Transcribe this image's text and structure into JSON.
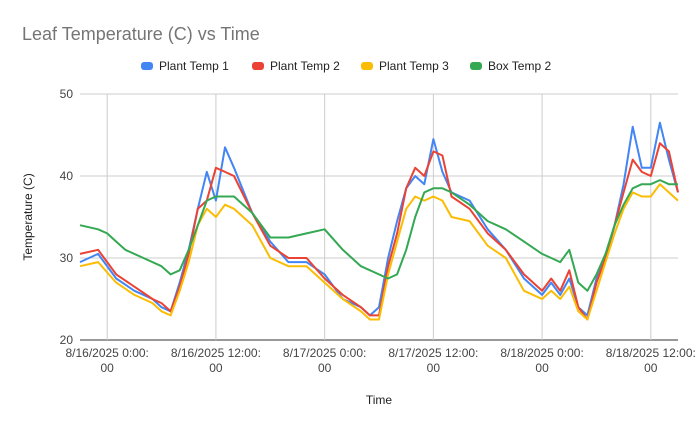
{
  "chart_data": {
    "type": "line",
    "title": "Leaf Temperature (C) vs Time",
    "xlabel": "Time",
    "ylabel": "Temperature (C)",
    "ylim": [
      20,
      50
    ],
    "yticks": [
      20,
      30,
      40,
      50
    ],
    "xlim": [
      "2025-08-15 21:00",
      "2025-08-18 15:00"
    ],
    "xticks": [
      {
        "x": "2025-08-16 00:00",
        "label": [
          "8/16/2025 0:00:",
          "00"
        ]
      },
      {
        "x": "2025-08-16 12:00",
        "label": [
          "8/16/2025 12:00:",
          "00"
        ]
      },
      {
        "x": "2025-08-17 00:00",
        "label": [
          "8/17/2025 0:00:",
          "00"
        ]
      },
      {
        "x": "2025-08-17 12:00",
        "label": [
          "8/17/2025 12:00:",
          "00"
        ]
      },
      {
        "x": "2025-08-18 00:00",
        "label": [
          "8/18/2025 0:00:",
          "00"
        ]
      },
      {
        "x": "2025-08-18 12:00",
        "label": [
          "8/18/2025 12:00:",
          "00"
        ]
      }
    ],
    "grid": true,
    "legend_position": "top",
    "series": [
      {
        "name": "Plant Temp 1",
        "color": "#4285f4",
        "x": [
          "2025-08-15 21:00",
          "2025-08-15 23:00",
          "2025-08-16 01:00",
          "2025-08-16 03:00",
          "2025-08-16 05:00",
          "2025-08-16 06:00",
          "2025-08-16 07:00",
          "2025-08-16 08:00",
          "2025-08-16 09:00",
          "2025-08-16 10:00",
          "2025-08-16 11:00",
          "2025-08-16 12:00",
          "2025-08-16 13:00",
          "2025-08-16 14:00",
          "2025-08-16 16:00",
          "2025-08-16 18:00",
          "2025-08-16 20:00",
          "2025-08-16 22:00",
          "2025-08-17 00:00",
          "2025-08-17 02:00",
          "2025-08-17 04:00",
          "2025-08-17 05:00",
          "2025-08-17 06:00",
          "2025-08-17 07:00",
          "2025-08-17 08:00",
          "2025-08-17 09:00",
          "2025-08-17 10:00",
          "2025-08-17 11:00",
          "2025-08-17 12:00",
          "2025-08-17 13:00",
          "2025-08-17 14:00",
          "2025-08-17 16:00",
          "2025-08-17 18:00",
          "2025-08-17 20:00",
          "2025-08-17 22:00",
          "2025-08-18 00:00",
          "2025-08-18 01:00",
          "2025-08-18 02:00",
          "2025-08-18 03:00",
          "2025-08-18 04:00",
          "2025-08-18 05:00",
          "2025-08-18 06:00",
          "2025-08-18 07:00",
          "2025-08-18 08:00",
          "2025-08-18 09:00",
          "2025-08-18 10:00",
          "2025-08-18 11:00",
          "2025-08-18 12:00",
          "2025-08-18 13:00",
          "2025-08-18 14:00",
          "2025-08-18 15:00"
        ],
        "y": [
          29.5,
          30.5,
          27.5,
          26,
          25,
          24,
          23.5,
          27,
          31,
          36,
          40.5,
          37,
          43.5,
          41,
          35.5,
          32,
          29.5,
          29.5,
          28,
          25,
          24,
          23,
          24,
          30,
          34.5,
          38.5,
          40,
          39,
          44.5,
          40.5,
          38,
          37,
          33.5,
          31,
          27.5,
          25.5,
          27,
          25.5,
          27.5,
          24,
          23,
          27.5,
          30,
          34,
          39,
          46,
          41,
          41,
          46.5,
          42,
          38
        ]
      },
      {
        "name": "Plant Temp 2",
        "color": "#ea4335",
        "x": [
          "2025-08-15 21:00",
          "2025-08-15 23:00",
          "2025-08-16 01:00",
          "2025-08-16 03:00",
          "2025-08-16 05:00",
          "2025-08-16 06:00",
          "2025-08-16 07:00",
          "2025-08-16 08:00",
          "2025-08-16 09:00",
          "2025-08-16 10:00",
          "2025-08-16 11:00",
          "2025-08-16 12:00",
          "2025-08-16 13:00",
          "2025-08-16 14:00",
          "2025-08-16 16:00",
          "2025-08-16 18:00",
          "2025-08-16 20:00",
          "2025-08-16 22:00",
          "2025-08-17 00:00",
          "2025-08-17 02:00",
          "2025-08-17 04:00",
          "2025-08-17 05:00",
          "2025-08-17 06:00",
          "2025-08-17 07:00",
          "2025-08-17 08:00",
          "2025-08-17 09:00",
          "2025-08-17 10:00",
          "2025-08-17 11:00",
          "2025-08-17 12:00",
          "2025-08-17 13:00",
          "2025-08-17 14:00",
          "2025-08-17 16:00",
          "2025-08-17 18:00",
          "2025-08-17 20:00",
          "2025-08-17 22:00",
          "2025-08-18 00:00",
          "2025-08-18 01:00",
          "2025-08-18 02:00",
          "2025-08-18 03:00",
          "2025-08-18 04:00",
          "2025-08-18 05:00",
          "2025-08-18 06:00",
          "2025-08-18 07:00",
          "2025-08-18 08:00",
          "2025-08-18 09:00",
          "2025-08-18 10:00",
          "2025-08-18 11:00",
          "2025-08-18 12:00",
          "2025-08-18 13:00",
          "2025-08-18 14:00",
          "2025-08-18 15:00"
        ],
        "y": [
          30.5,
          31,
          28,
          26.5,
          25,
          24.5,
          23.5,
          26.5,
          30.5,
          36,
          37,
          41,
          40.5,
          40,
          35.5,
          31.5,
          30,
          30,
          27.5,
          25.5,
          24,
          23,
          23,
          29,
          33,
          38.5,
          41,
          40,
          43,
          42.5,
          37.5,
          36,
          33,
          31,
          28,
          26,
          27.5,
          26,
          28.5,
          24,
          22.5,
          27,
          30,
          34,
          38,
          42,
          40.5,
          40,
          44,
          43,
          38
        ]
      },
      {
        "name": "Plant Temp 3",
        "color": "#fbbc04",
        "x": [
          "2025-08-15 21:00",
          "2025-08-15 23:00",
          "2025-08-16 01:00",
          "2025-08-16 03:00",
          "2025-08-16 05:00",
          "2025-08-16 06:00",
          "2025-08-16 07:00",
          "2025-08-16 08:00",
          "2025-08-16 09:00",
          "2025-08-16 10:00",
          "2025-08-16 11:00",
          "2025-08-16 12:00",
          "2025-08-16 13:00",
          "2025-08-16 14:00",
          "2025-08-16 16:00",
          "2025-08-16 18:00",
          "2025-08-16 20:00",
          "2025-08-16 22:00",
          "2025-08-17 00:00",
          "2025-08-17 02:00",
          "2025-08-17 04:00",
          "2025-08-17 05:00",
          "2025-08-17 06:00",
          "2025-08-17 07:00",
          "2025-08-17 08:00",
          "2025-08-17 09:00",
          "2025-08-17 10:00",
          "2025-08-17 11:00",
          "2025-08-17 12:00",
          "2025-08-17 13:00",
          "2025-08-17 14:00",
          "2025-08-17 16:00",
          "2025-08-17 18:00",
          "2025-08-17 20:00",
          "2025-08-17 22:00",
          "2025-08-18 00:00",
          "2025-08-18 01:00",
          "2025-08-18 02:00",
          "2025-08-18 03:00",
          "2025-08-18 04:00",
          "2025-08-18 05:00",
          "2025-08-18 06:00",
          "2025-08-18 07:00",
          "2025-08-18 08:00",
          "2025-08-18 09:00",
          "2025-08-18 10:00",
          "2025-08-18 11:00",
          "2025-08-18 12:00",
          "2025-08-18 13:00",
          "2025-08-18 14:00",
          "2025-08-18 15:00"
        ],
        "y": [
          29,
          29.5,
          27,
          25.5,
          24.5,
          23.5,
          23,
          26,
          29.5,
          34,
          36,
          35,
          36.5,
          36,
          34,
          30,
          29,
          29,
          27,
          25,
          23.5,
          22.5,
          22.5,
          28,
          32,
          36,
          37.5,
          37,
          37.5,
          37,
          35,
          34.5,
          31.5,
          30,
          26,
          25,
          26,
          25,
          26.5,
          23.5,
          22.5,
          26,
          29.5,
          33,
          36,
          38,
          37.5,
          37.5,
          39,
          38,
          37
        ]
      },
      {
        "name": "Box Temp 2",
        "color": "#34a853",
        "x": [
          "2025-08-15 21:00",
          "2025-08-15 23:00",
          "2025-08-16 00:00",
          "2025-08-16 01:00",
          "2025-08-16 02:00",
          "2025-08-16 04:00",
          "2025-08-16 06:00",
          "2025-08-16 07:00",
          "2025-08-16 08:00",
          "2025-08-16 09:00",
          "2025-08-16 10:00",
          "2025-08-16 11:00",
          "2025-08-16 12:00",
          "2025-08-16 13:00",
          "2025-08-16 14:00",
          "2025-08-16 16:00",
          "2025-08-16 18:00",
          "2025-08-16 20:00",
          "2025-08-16 22:00",
          "2025-08-17 00:00",
          "2025-08-17 02:00",
          "2025-08-17 04:00",
          "2025-08-17 06:00",
          "2025-08-17 07:00",
          "2025-08-17 08:00",
          "2025-08-17 09:00",
          "2025-08-17 10:00",
          "2025-08-17 11:00",
          "2025-08-17 12:00",
          "2025-08-17 13:00",
          "2025-08-17 14:00",
          "2025-08-17 16:00",
          "2025-08-17 18:00",
          "2025-08-17 20:00",
          "2025-08-17 22:00",
          "2025-08-18 00:00",
          "2025-08-18 01:00",
          "2025-08-18 02:00",
          "2025-08-18 03:00",
          "2025-08-18 04:00",
          "2025-08-18 05:00",
          "2025-08-18 06:00",
          "2025-08-18 07:00",
          "2025-08-18 08:00",
          "2025-08-18 09:00",
          "2025-08-18 10:00",
          "2025-08-18 11:00",
          "2025-08-18 12:00",
          "2025-08-18 13:00",
          "2025-08-18 14:00",
          "2025-08-18 15:00"
        ],
        "y": [
          34,
          33.5,
          33,
          32,
          31,
          30,
          29,
          28,
          28.5,
          31,
          34,
          37,
          37.5,
          37.5,
          37.5,
          35.5,
          32.5,
          32.5,
          33,
          33.5,
          31,
          29,
          28,
          27.5,
          28,
          31,
          35,
          38,
          38.5,
          38.5,
          38,
          36.5,
          34.5,
          33.5,
          32,
          30.5,
          30,
          29.5,
          31,
          27,
          26,
          28,
          30.5,
          34,
          36.5,
          38.5,
          39,
          39,
          39.5,
          39,
          39
        ]
      }
    ]
  }
}
